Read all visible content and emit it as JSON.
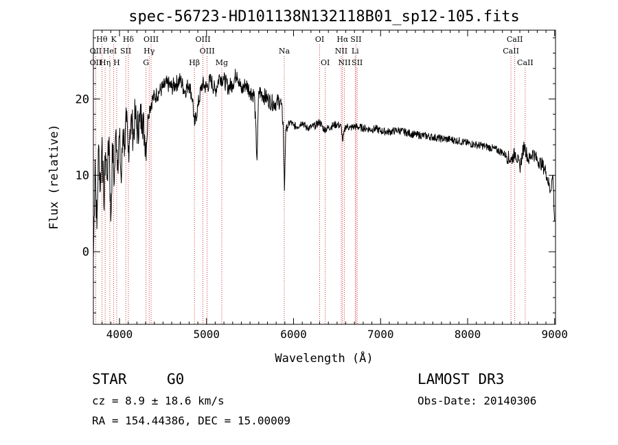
{
  "chart_data": {
    "type": "line",
    "title": "spec-56723-HD101138N132118B01_sp12-105.fits",
    "xlabel": "Wavelength (Å)",
    "ylabel": "Flux (relative)",
    "xlim": [
      3700,
      9010
    ],
    "ylim": [
      -9.5,
      29
    ],
    "x_ticks": [
      4000,
      5000,
      6000,
      7000,
      8000,
      9000
    ],
    "y_ticks": [
      0,
      10,
      20
    ],
    "grid": false,
    "series": [
      {
        "name": "flux",
        "x": [
          3700,
          3720,
          3740,
          3760,
          3780,
          3800,
          3820,
          3840,
          3860,
          3880,
          3900,
          3920,
          3940,
          3960,
          3980,
          4000,
          4020,
          4040,
          4060,
          4080,
          4100,
          4120,
          4140,
          4160,
          4180,
          4200,
          4230,
          4260,
          4290,
          4310,
          4330,
          4350,
          4380,
          4420,
          4460,
          4500,
          4550,
          4600,
          4650,
          4700,
          4750,
          4800,
          4840,
          4862,
          4900,
          4950,
          5000,
          5050,
          5100,
          5150,
          5200,
          5250,
          5300,
          5350,
          5400,
          5450,
          5500,
          5550,
          5580,
          5600,
          5650,
          5700,
          5750,
          5800,
          5850,
          5880,
          5895,
          5910,
          5930,
          5960,
          6000,
          6050,
          6100,
          6150,
          6200,
          6250,
          6300,
          6350,
          6400,
          6450,
          6500,
          6550,
          6563,
          6600,
          6650,
          6700,
          6750,
          6800,
          6850,
          6900,
          6950,
          7000,
          7100,
          7200,
          7300,
          7400,
          7500,
          7600,
          7700,
          7800,
          7900,
          8000,
          8100,
          8200,
          8300,
          8400,
          8450,
          8500,
          8550,
          8600,
          8650,
          8700,
          8750,
          8800,
          8850,
          8900,
          8950,
          8980,
          9000
        ],
        "values": [
          -1,
          12,
          3,
          14,
          8,
          15,
          6,
          13,
          10,
          15,
          4,
          14,
          9,
          16,
          12,
          15,
          9,
          16,
          14,
          17,
          13,
          16,
          17,
          15,
          18,
          16,
          17,
          18,
          15,
          14,
          18,
          19,
          20,
          20.5,
          21,
          21.5,
          22,
          21.5,
          22,
          22.5,
          21,
          22,
          20,
          16.5,
          19,
          22,
          21.5,
          22.5,
          21,
          23,
          22.5,
          21.5,
          22,
          23.5,
          21,
          22,
          21,
          20.5,
          12,
          21,
          20.5,
          20,
          19.5,
          19.5,
          19.8,
          17,
          8,
          16,
          16.3,
          17,
          16.5,
          16.4,
          17,
          16.2,
          16.3,
          16.5,
          17,
          16,
          16.2,
          16.5,
          16.7,
          16.3,
          14.5,
          16.5,
          16.2,
          16.4,
          16.3,
          16.2,
          16.1,
          16,
          16.1,
          15.8,
          15.7,
          15.9,
          15.6,
          15.3,
          15.2,
          15,
          14.8,
          14.7,
          14.5,
          14.2,
          14,
          13.8,
          13.5,
          13,
          12.5,
          12,
          13,
          11,
          14,
          12,
          13,
          12,
          11.5,
          10.5,
          8,
          10,
          4
        ]
      }
    ],
    "line_markers": [
      {
        "label": "Hθ",
        "wavelength": 3798,
        "row": 1
      },
      {
        "label": "OII",
        "wavelength": 3727,
        "row": 2
      },
      {
        "label": "OII",
        "wavelength": 3727,
        "row": 3
      },
      {
        "label": "K",
        "wavelength": 3934,
        "row": 1
      },
      {
        "label": "Hδ",
        "wavelength": 4102,
        "row": 1
      },
      {
        "label": "HeI",
        "wavelength": 3889,
        "row": 2
      },
      {
        "label": "Hη",
        "wavelength": 3835,
        "row": 3
      },
      {
        "label": "SII",
        "wavelength": 4072,
        "row": 2
      },
      {
        "label": "H",
        "wavelength": 3968,
        "row": 3
      },
      {
        "label": "OIII",
        "wavelength": 4363,
        "row": 1
      },
      {
        "label": "Hγ",
        "wavelength": 4341,
        "row": 2
      },
      {
        "label": "G",
        "wavelength": 4305,
        "row": 3
      },
      {
        "label": "OIII",
        "wavelength": 4959,
        "row": 1
      },
      {
        "label": "OIII",
        "wavelength": 5007,
        "row": 2
      },
      {
        "label": "Hβ",
        "wavelength": 4861,
        "row": 3
      },
      {
        "label": "Mg",
        "wavelength": 5175,
        "row": 3
      },
      {
        "label": "Na",
        "wavelength": 5893,
        "row": 2
      },
      {
        "label": "OI",
        "wavelength": 6300,
        "row": 1
      },
      {
        "label": "OI",
        "wavelength": 6364,
        "row": 3
      },
      {
        "label": "Hα",
        "wavelength": 6563,
        "row": 1
      },
      {
        "label": "SII",
        "wavelength": 6717,
        "row": 1
      },
      {
        "label": "NII",
        "wavelength": 6548,
        "row": 2
      },
      {
        "label": "Li",
        "wavelength": 6708,
        "row": 2
      },
      {
        "label": "NII",
        "wavelength": 6584,
        "row": 3
      },
      {
        "label": "SII",
        "wavelength": 6731,
        "row": 3
      },
      {
        "label": "CaII",
        "wavelength": 8542,
        "row": 1
      },
      {
        "label": "CaII",
        "wavelength": 8498,
        "row": 2
      },
      {
        "label": "CaII",
        "wavelength": 8662,
        "row": 3
      }
    ]
  },
  "info": {
    "class": "STAR",
    "subclass": "G0",
    "survey": "LAMOST DR3",
    "redshift": "cz = 8.9 ± 18.6 km/s",
    "obs_date": "Obs-Date: 20140306",
    "coords": "RA = 154.44386, DEC =  15.00009"
  },
  "colors": {
    "line": "#000000",
    "marker": "#c00000"
  }
}
